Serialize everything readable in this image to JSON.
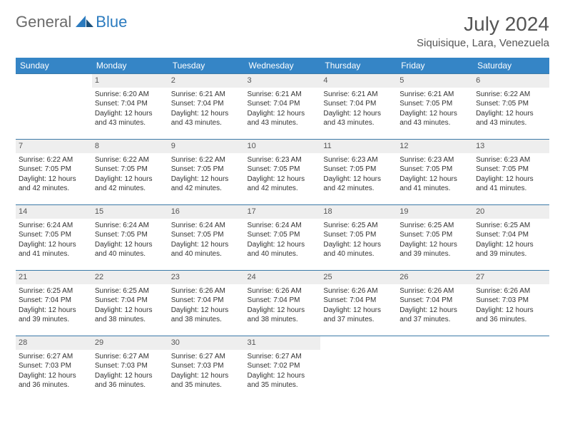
{
  "logo": {
    "part1": "General",
    "part2": "Blue"
  },
  "title": "July 2024",
  "location": "Siquisique, Lara, Venezuela",
  "colors": {
    "header_bg": "#3585c6",
    "header_text": "#ffffff",
    "row_border": "#3c7aa8",
    "daynum_bg": "#eeeeee",
    "text": "#333333",
    "logo_gray": "#6b6b6b",
    "logo_blue": "#2b7bbf"
  },
  "weekdays": [
    "Sunday",
    "Monday",
    "Tuesday",
    "Wednesday",
    "Thursday",
    "Friday",
    "Saturday"
  ],
  "weeks": [
    [
      null,
      {
        "n": "1",
        "sr": "Sunrise: 6:20 AM",
        "ss": "Sunset: 7:04 PM",
        "dl": "Daylight: 12 hours and 43 minutes."
      },
      {
        "n": "2",
        "sr": "Sunrise: 6:21 AM",
        "ss": "Sunset: 7:04 PM",
        "dl": "Daylight: 12 hours and 43 minutes."
      },
      {
        "n": "3",
        "sr": "Sunrise: 6:21 AM",
        "ss": "Sunset: 7:04 PM",
        "dl": "Daylight: 12 hours and 43 minutes."
      },
      {
        "n": "4",
        "sr": "Sunrise: 6:21 AM",
        "ss": "Sunset: 7:04 PM",
        "dl": "Daylight: 12 hours and 43 minutes."
      },
      {
        "n": "5",
        "sr": "Sunrise: 6:21 AM",
        "ss": "Sunset: 7:05 PM",
        "dl": "Daylight: 12 hours and 43 minutes."
      },
      {
        "n": "6",
        "sr": "Sunrise: 6:22 AM",
        "ss": "Sunset: 7:05 PM",
        "dl": "Daylight: 12 hours and 43 minutes."
      }
    ],
    [
      {
        "n": "7",
        "sr": "Sunrise: 6:22 AM",
        "ss": "Sunset: 7:05 PM",
        "dl": "Daylight: 12 hours and 42 minutes."
      },
      {
        "n": "8",
        "sr": "Sunrise: 6:22 AM",
        "ss": "Sunset: 7:05 PM",
        "dl": "Daylight: 12 hours and 42 minutes."
      },
      {
        "n": "9",
        "sr": "Sunrise: 6:22 AM",
        "ss": "Sunset: 7:05 PM",
        "dl": "Daylight: 12 hours and 42 minutes."
      },
      {
        "n": "10",
        "sr": "Sunrise: 6:23 AM",
        "ss": "Sunset: 7:05 PM",
        "dl": "Daylight: 12 hours and 42 minutes."
      },
      {
        "n": "11",
        "sr": "Sunrise: 6:23 AM",
        "ss": "Sunset: 7:05 PM",
        "dl": "Daylight: 12 hours and 42 minutes."
      },
      {
        "n": "12",
        "sr": "Sunrise: 6:23 AM",
        "ss": "Sunset: 7:05 PM",
        "dl": "Daylight: 12 hours and 41 minutes."
      },
      {
        "n": "13",
        "sr": "Sunrise: 6:23 AM",
        "ss": "Sunset: 7:05 PM",
        "dl": "Daylight: 12 hours and 41 minutes."
      }
    ],
    [
      {
        "n": "14",
        "sr": "Sunrise: 6:24 AM",
        "ss": "Sunset: 7:05 PM",
        "dl": "Daylight: 12 hours and 41 minutes."
      },
      {
        "n": "15",
        "sr": "Sunrise: 6:24 AM",
        "ss": "Sunset: 7:05 PM",
        "dl": "Daylight: 12 hours and 40 minutes."
      },
      {
        "n": "16",
        "sr": "Sunrise: 6:24 AM",
        "ss": "Sunset: 7:05 PM",
        "dl": "Daylight: 12 hours and 40 minutes."
      },
      {
        "n": "17",
        "sr": "Sunrise: 6:24 AM",
        "ss": "Sunset: 7:05 PM",
        "dl": "Daylight: 12 hours and 40 minutes."
      },
      {
        "n": "18",
        "sr": "Sunrise: 6:25 AM",
        "ss": "Sunset: 7:05 PM",
        "dl": "Daylight: 12 hours and 40 minutes."
      },
      {
        "n": "19",
        "sr": "Sunrise: 6:25 AM",
        "ss": "Sunset: 7:05 PM",
        "dl": "Daylight: 12 hours and 39 minutes."
      },
      {
        "n": "20",
        "sr": "Sunrise: 6:25 AM",
        "ss": "Sunset: 7:04 PM",
        "dl": "Daylight: 12 hours and 39 minutes."
      }
    ],
    [
      {
        "n": "21",
        "sr": "Sunrise: 6:25 AM",
        "ss": "Sunset: 7:04 PM",
        "dl": "Daylight: 12 hours and 39 minutes."
      },
      {
        "n": "22",
        "sr": "Sunrise: 6:25 AM",
        "ss": "Sunset: 7:04 PM",
        "dl": "Daylight: 12 hours and 38 minutes."
      },
      {
        "n": "23",
        "sr": "Sunrise: 6:26 AM",
        "ss": "Sunset: 7:04 PM",
        "dl": "Daylight: 12 hours and 38 minutes."
      },
      {
        "n": "24",
        "sr": "Sunrise: 6:26 AM",
        "ss": "Sunset: 7:04 PM",
        "dl": "Daylight: 12 hours and 38 minutes."
      },
      {
        "n": "25",
        "sr": "Sunrise: 6:26 AM",
        "ss": "Sunset: 7:04 PM",
        "dl": "Daylight: 12 hours and 37 minutes."
      },
      {
        "n": "26",
        "sr": "Sunrise: 6:26 AM",
        "ss": "Sunset: 7:04 PM",
        "dl": "Daylight: 12 hours and 37 minutes."
      },
      {
        "n": "27",
        "sr": "Sunrise: 6:26 AM",
        "ss": "Sunset: 7:03 PM",
        "dl": "Daylight: 12 hours and 36 minutes."
      }
    ],
    [
      {
        "n": "28",
        "sr": "Sunrise: 6:27 AM",
        "ss": "Sunset: 7:03 PM",
        "dl": "Daylight: 12 hours and 36 minutes."
      },
      {
        "n": "29",
        "sr": "Sunrise: 6:27 AM",
        "ss": "Sunset: 7:03 PM",
        "dl": "Daylight: 12 hours and 36 minutes."
      },
      {
        "n": "30",
        "sr": "Sunrise: 6:27 AM",
        "ss": "Sunset: 7:03 PM",
        "dl": "Daylight: 12 hours and 35 minutes."
      },
      {
        "n": "31",
        "sr": "Sunrise: 6:27 AM",
        "ss": "Sunset: 7:02 PM",
        "dl": "Daylight: 12 hours and 35 minutes."
      },
      null,
      null,
      null
    ]
  ]
}
